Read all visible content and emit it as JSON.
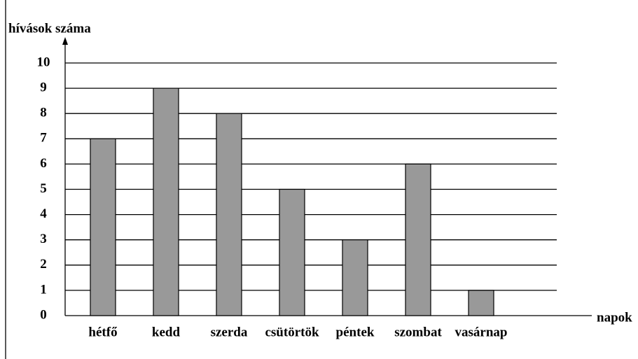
{
  "chart_data": {
    "type": "bar",
    "ylabel": "hívások száma",
    "xlabel": "napok",
    "categories": [
      "hétfő",
      "kedd",
      "szerda",
      "csütörtök",
      "péntek",
      "szombat",
      "vasárnap"
    ],
    "values": [
      7,
      9,
      8,
      5,
      3,
      6,
      1
    ],
    "color": "#999999",
    "ylim": [
      0,
      10
    ],
    "yticks": [
      0,
      1,
      2,
      3,
      4,
      5,
      6,
      7,
      8,
      9,
      10
    ],
    "grid": true
  }
}
